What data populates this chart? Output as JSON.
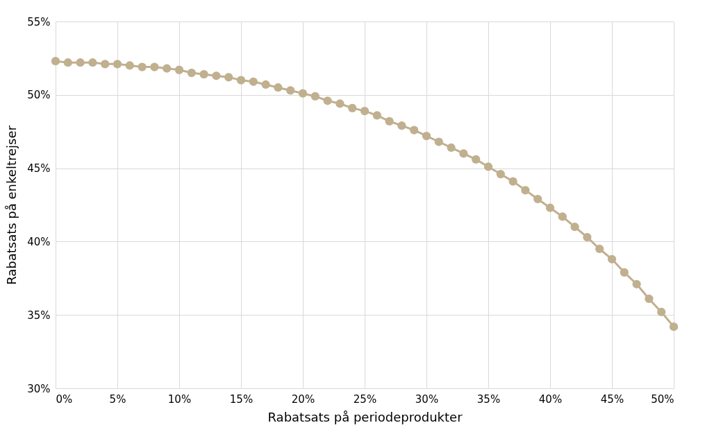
{
  "chart_data": {
    "type": "line",
    "xlabel": "Rabatsats på periodeprodukter",
    "ylabel": "Rabatsats på enkeltrejser",
    "x": [
      0,
      1,
      2,
      3,
      4,
      5,
      6,
      7,
      8,
      9,
      10,
      11,
      12,
      13,
      14,
      15,
      16,
      17,
      18,
      19,
      20,
      21,
      22,
      23,
      24,
      25,
      26,
      27,
      28,
      29,
      30,
      31,
      32,
      33,
      34,
      35,
      36,
      37,
      38,
      39,
      40,
      41,
      42,
      43,
      44,
      45,
      46,
      47,
      48,
      49,
      50
    ],
    "series": [
      {
        "color": "#c0b08f",
        "values": [
          52.3,
          52.2,
          52.2,
          52.2,
          52.1,
          52.1,
          52.0,
          51.9,
          51.9,
          51.8,
          51.7,
          51.5,
          51.4,
          51.3,
          51.2,
          51.0,
          50.9,
          50.7,
          50.5,
          50.3,
          50.1,
          49.9,
          49.6,
          49.4,
          49.1,
          48.9,
          48.6,
          48.2,
          47.9,
          47.6,
          47.2,
          46.8,
          46.4,
          46.0,
          45.6,
          45.1,
          44.6,
          44.1,
          43.5,
          42.9,
          42.3,
          41.7,
          41.0,
          40.3,
          39.5,
          38.8,
          37.9,
          37.1,
          36.1,
          35.2,
          34.2
        ]
      }
    ],
    "xlim": [
      0,
      50
    ],
    "xticks": [
      {
        "value": 0,
        "label": "0%"
      },
      {
        "value": 5,
        "label": "5%"
      },
      {
        "value": 10,
        "label": "10%"
      },
      {
        "value": 15,
        "label": "15%"
      },
      {
        "value": 20,
        "label": "20%"
      },
      {
        "value": 25,
        "label": "25%"
      },
      {
        "value": 30,
        "label": "30%"
      },
      {
        "value": 35,
        "label": "35%"
      },
      {
        "value": 40,
        "label": "40%"
      },
      {
        "value": 45,
        "label": "45%"
      },
      {
        "value": 50,
        "label": "50%"
      }
    ],
    "ylim": [
      30,
      55
    ],
    "yticks": [
      {
        "value": 30,
        "label": "30%"
      },
      {
        "value": 35,
        "label": "35%"
      },
      {
        "value": 40,
        "label": "40%"
      },
      {
        "value": 45,
        "label": "45%"
      },
      {
        "value": 50,
        "label": "50%"
      },
      {
        "value": 55,
        "label": "55%"
      }
    ],
    "grid": true,
    "marker": "circle",
    "line_style": "solid"
  }
}
